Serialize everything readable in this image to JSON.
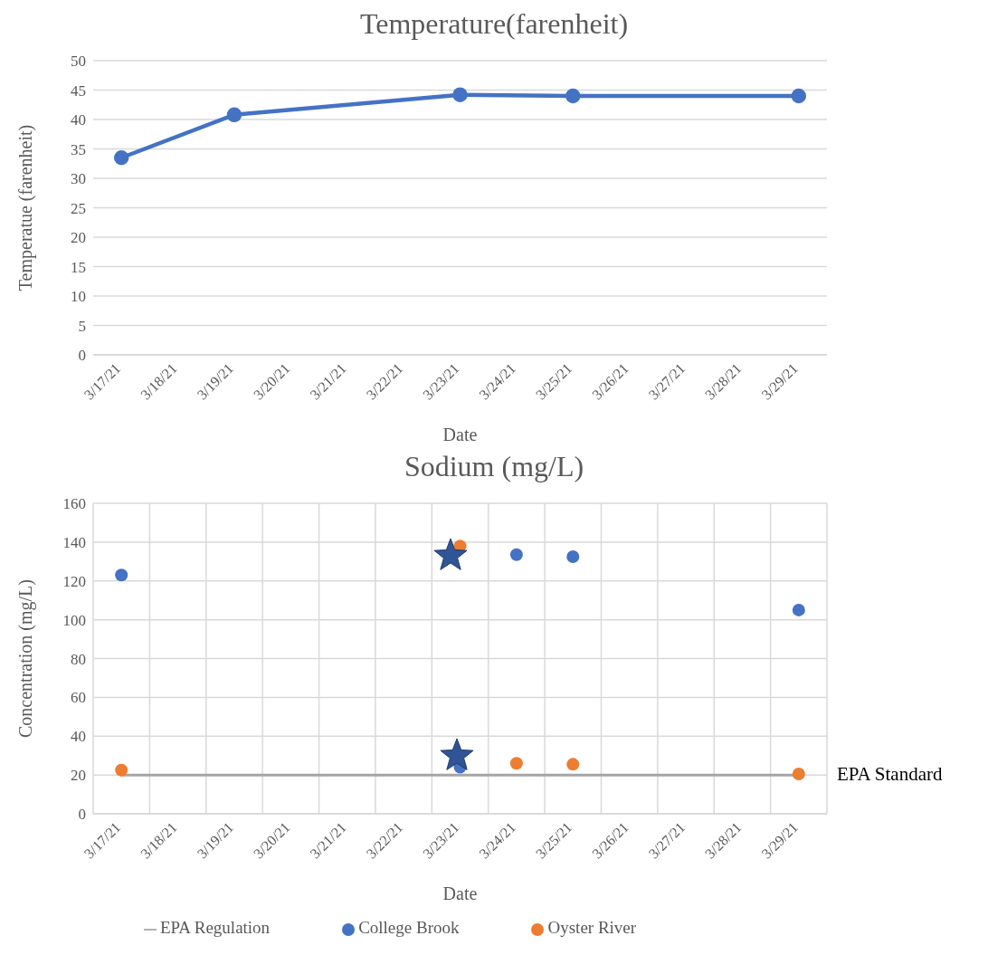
{
  "chart_data": [
    {
      "type": "line",
      "title": "Temperature(farenheit)",
      "xlabel": "Date",
      "ylabel": "Temperatue (farenheit)",
      "categories": [
        "3/17/21",
        "3/18/21",
        "3/19/21",
        "3/20/21",
        "3/21/21",
        "3/22/21",
        "3/23/21",
        "3/24/21",
        "3/25/21",
        "3/26/21",
        "3/27/21",
        "3/28/21",
        "3/29/21"
      ],
      "series": [
        {
          "color": "#4472c4",
          "values": [
            33.5,
            null,
            40.8,
            null,
            null,
            null,
            44.2,
            null,
            44,
            null,
            null,
            null,
            44
          ]
        }
      ],
      "ylim": [
        0,
        50
      ],
      "yticks": [
        0,
        5,
        10,
        15,
        20,
        25,
        30,
        35,
        40,
        45,
        50
      ],
      "grid": "y",
      "marker": "circle",
      "line_style": "solid"
    },
    {
      "type": "scatter",
      "title": "Sodium (mg/L)",
      "xlabel": "Date",
      "ylabel": "Concentration (mg/L)",
      "categories": [
        "3/17/21",
        "3/18/21",
        "3/19/21",
        "3/20/21",
        "3/21/21",
        "3/22/21",
        "3/23/21",
        "3/24/21",
        "3/25/21",
        "3/26/21",
        "3/27/21",
        "3/28/21",
        "3/29/21"
      ],
      "series": [
        {
          "name": "EPA Regulation",
          "type": "line",
          "color": "#a5a5a5",
          "marker": "none",
          "values": [
            20,
            20,
            20,
            20,
            20,
            20,
            20,
            20,
            20,
            20,
            20,
            20,
            20
          ]
        },
        {
          "name": "College Brook",
          "color": "#4472c4",
          "values": [
            123,
            null,
            null,
            null,
            null,
            null,
            24,
            133.5,
            132.5,
            null,
            null,
            null,
            105
          ]
        },
        {
          "name": "Oyster River",
          "color": "#ed7d31",
          "values": [
            22.5,
            null,
            null,
            null,
            null,
            null,
            138,
            26,
            25.5,
            null,
            null,
            null,
            20.5
          ]
        }
      ],
      "annotations": [
        "EPA Standard"
      ],
      "ylim": [
        0,
        160
      ],
      "yticks": [
        0,
        20,
        40,
        60,
        80,
        100,
        120,
        140,
        160
      ],
      "grid": true,
      "legend": "bottom",
      "marker": "circle"
    }
  ]
}
